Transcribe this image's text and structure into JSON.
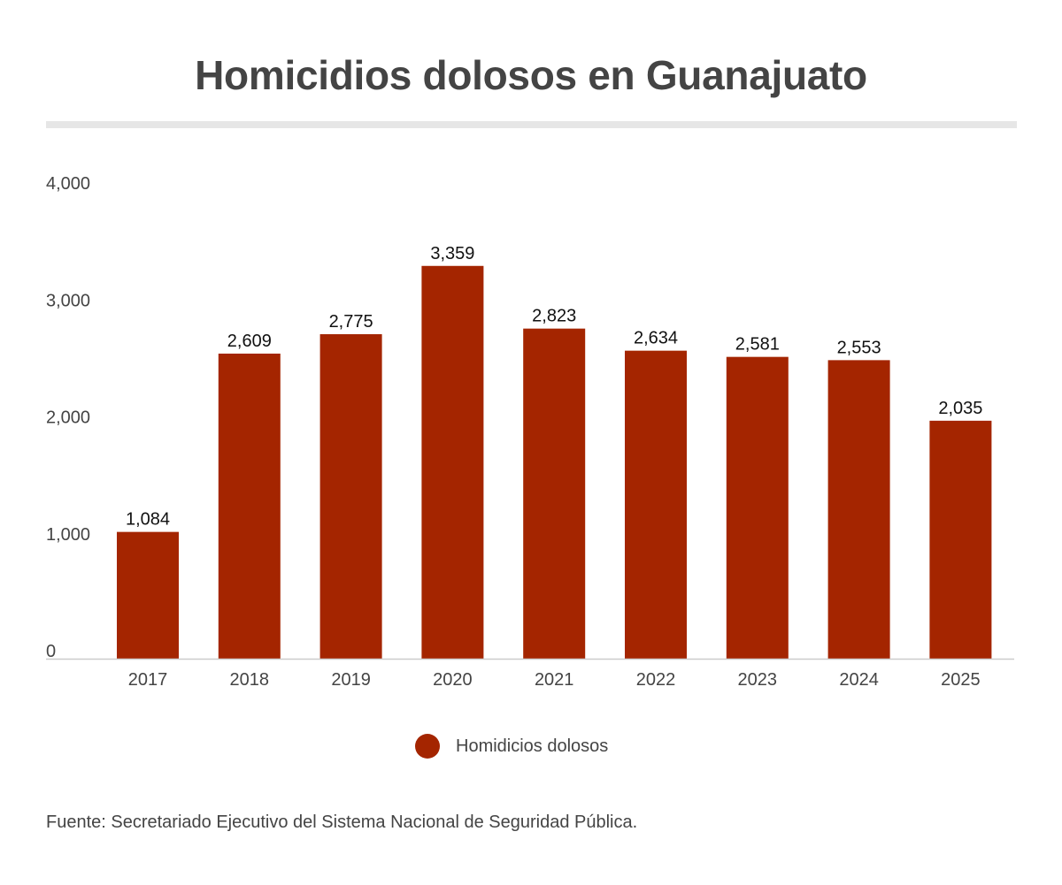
{
  "title": "Homicidios dolosos en Guanajuato",
  "source": "Fuente: Secretariado Ejecutivo del Sistema Nacional de Seguridad Pública.",
  "colors": {
    "bar": "#a42500",
    "text": "#444444",
    "axis": "#cccccc"
  },
  "chart_data": {
    "type": "bar",
    "title": "Homicidios dolosos en Guanajuato",
    "categories": [
      "2017",
      "2018",
      "2019",
      "2020",
      "2021",
      "2022",
      "2023",
      "2024",
      "2025"
    ],
    "series": [
      {
        "name": "Homidicios dolosos",
        "values": [
          1084,
          2609,
          2775,
          3359,
          2823,
          2634,
          2581,
          2553,
          2035
        ],
        "labels": [
          "1,084",
          "2,609",
          "2,775",
          "3,359",
          "2,823",
          "2,634",
          "2,581",
          "2,553",
          "2,035"
        ]
      }
    ],
    "ylim": [
      0,
      4000
    ],
    "yticks": [
      0,
      1000,
      2000,
      3000,
      4000
    ],
    "ytick_labels": [
      "0",
      "1,000",
      "2,000",
      "3,000",
      "4,000"
    ],
    "grid": false,
    "legend": "bottom-center",
    "xlabel": "",
    "ylabel": ""
  }
}
